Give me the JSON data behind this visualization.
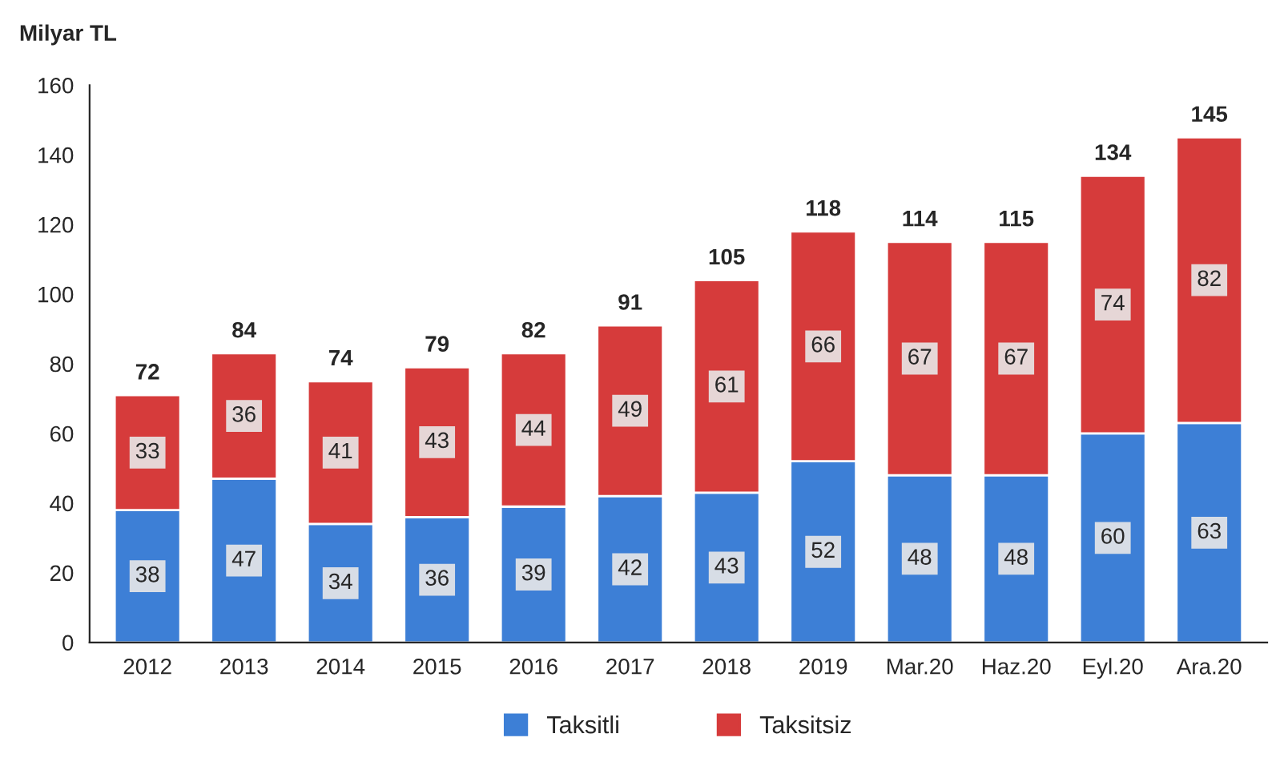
{
  "chart_data": {
    "type": "bar",
    "stacked": true,
    "ylabel": "Milyar TL",
    "categories": [
      "2012",
      "2013",
      "2014",
      "2015",
      "2016",
      "2017",
      "2018",
      "2019",
      "Mar.20",
      "Haz.20",
      "Eyl.20",
      "Ara.20"
    ],
    "series": [
      {
        "name": "Taksitli",
        "color": "#3d7fd6",
        "values": [
          38,
          47,
          34,
          36,
          39,
          42,
          43,
          52,
          48,
          48,
          60,
          63
        ]
      },
      {
        "name": "Taksitsiz",
        "color": "#d63b3b",
        "values": [
          33,
          36,
          41,
          43,
          44,
          49,
          61,
          66,
          67,
          67,
          74,
          82
        ]
      }
    ],
    "totals": [
      "72",
      "84",
      "74",
      "79",
      "82",
      "91",
      "105",
      "118",
      "114",
      "115",
      "134",
      "145"
    ],
    "data_labels": true,
    "ylim": [
      0,
      160
    ],
    "yticks": [
      0,
      20,
      40,
      60,
      80,
      100,
      120,
      140,
      160
    ],
    "grid": false,
    "legend": "bottom"
  }
}
